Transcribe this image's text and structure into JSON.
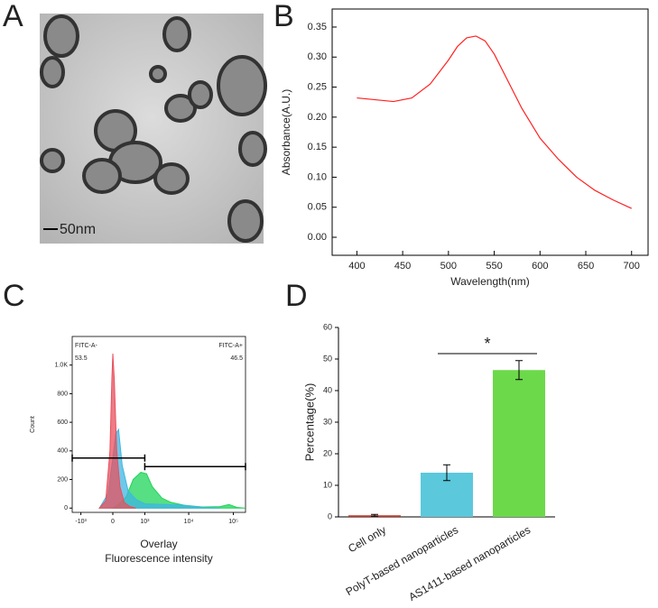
{
  "panels": {
    "a": "A",
    "b": "B",
    "c": "C",
    "d": "D"
  },
  "image": {
    "scale_label": "50nm"
  },
  "chart_data": [
    {
      "type": "line",
      "x_label": "Wavelength(nm)",
      "y_label": "Absorbance(A.U.)",
      "color": "#ff2020",
      "x": [
        400,
        420,
        440,
        460,
        480,
        500,
        510,
        520,
        530,
        540,
        550,
        560,
        580,
        600,
        620,
        640,
        660,
        680,
        700
      ],
      "values": [
        0.232,
        0.229,
        0.226,
        0.232,
        0.255,
        0.295,
        0.318,
        0.332,
        0.335,
        0.327,
        0.305,
        0.275,
        0.215,
        0.165,
        0.13,
        0.1,
        0.078,
        0.062,
        0.048
      ],
      "xlim": [
        373,
        718
      ],
      "xticks": [
        400,
        450,
        500,
        550,
        600,
        650,
        700
      ],
      "ylim": [
        -0.03,
        0.38
      ],
      "yticks": [
        {
          "value": 0,
          "label": "0.00"
        },
        {
          "value": 0.05,
          "label": "0.05"
        },
        {
          "value": 0.1,
          "label": "0.10"
        },
        {
          "value": 0.15,
          "label": "0.15"
        },
        {
          "value": 0.2,
          "label": "0.20"
        },
        {
          "value": 0.25,
          "label": "0.25"
        },
        {
          "value": 0.3,
          "label": "0.30"
        },
        {
          "value": 0.35,
          "label": "0.35"
        }
      ]
    },
    {
      "type": "area",
      "x_label": [
        "Overlay",
        "Fluorescence intensity"
      ],
      "y_label": "Count",
      "x_scale": "biexponential",
      "series": [
        {
          "color": "#e8505e",
          "x": [
            -300,
            -150,
            -60,
            -20,
            0,
            30,
            80,
            150,
            250,
            400,
            600
          ],
          "values": [
            0,
            50,
            400,
            900,
            1080,
            900,
            400,
            150,
            40,
            10,
            0
          ]
        },
        {
          "color": "#3fb6e2",
          "x": [
            -300,
            -100,
            0,
            60,
            120,
            200,
            350,
            600,
            1000,
            3000,
            8000,
            20000,
            50000
          ],
          "values": [
            0,
            100,
            350,
            520,
            550,
            300,
            120,
            60,
            30,
            25,
            20,
            5,
            0
          ]
        },
        {
          "color": "#1ed45a",
          "x": [
            0,
            100,
            300,
            500,
            800,
            1100,
            1500,
            2500,
            4000,
            8000,
            20000,
            50000,
            80000,
            120000,
            180000
          ],
          "values": [
            0,
            20,
            80,
            200,
            250,
            240,
            150,
            70,
            40,
            20,
            8,
            10,
            25,
            5,
            0
          ]
        }
      ],
      "gates": [
        {
          "name": "FITC-A-",
          "percent": 53.5,
          "range": [
            -1600,
            1000
          ],
          "level": 350
        },
        {
          "name": "FITC-A+",
          "percent": 46.5,
          "range": [
            1000,
            187000
          ],
          "level": 290
        }
      ],
      "xlim": [
        -1600,
        187000
      ],
      "xticks": [
        {
          "value": -1000,
          "label": "-10³"
        },
        0,
        {
          "value": 1000,
          "label": "10³"
        },
        {
          "value": 10000,
          "label": "10⁴"
        },
        {
          "value": 100000,
          "label": "10⁵"
        }
      ],
      "ylim": [
        -30,
        1200
      ],
      "yticks": [
        0,
        200,
        400,
        600,
        800,
        {
          "value": 1000,
          "label": "1.0K"
        }
      ]
    },
    {
      "type": "bar",
      "y_label": "Percentage(%)",
      "categories": [
        "Cell only",
        "PolyT-based nanoparticles",
        "AS1411-based nanoparticles"
      ],
      "values": [
        0.5,
        14,
        46.5
      ],
      "errors": [
        0.3,
        2.5,
        3
      ],
      "colors": [
        "#c0392b",
        "#5bc8dc",
        "#6cd94a"
      ],
      "annotation": "*",
      "ylim": [
        0,
        60
      ],
      "yticks": [
        0,
        10,
        20,
        30,
        40,
        50,
        60
      ]
    }
  ]
}
